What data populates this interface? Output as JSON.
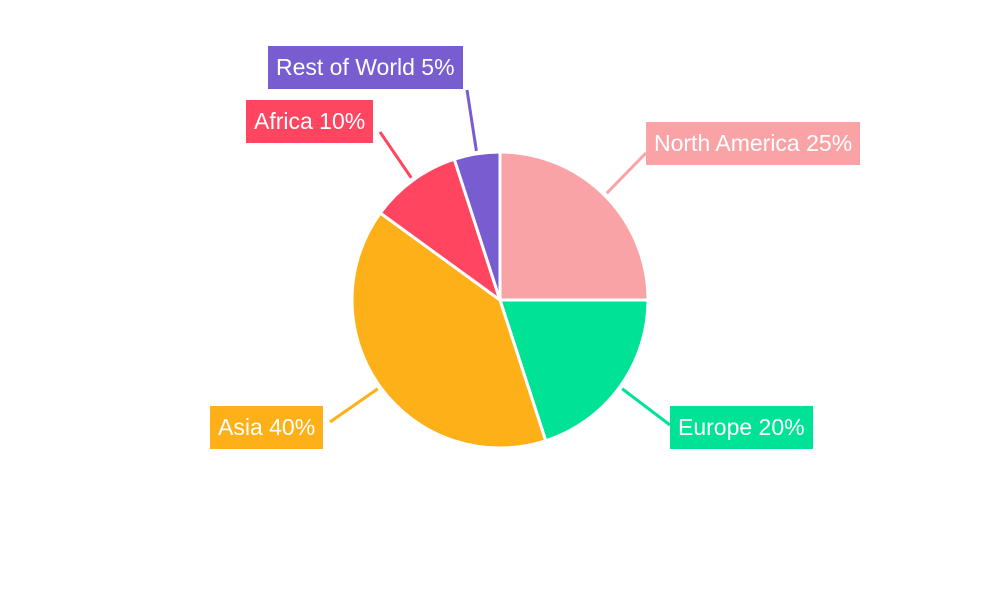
{
  "chart_data": {
    "type": "pie",
    "title": "",
    "slices": [
      {
        "label": "North America",
        "value": 25,
        "display": "North America 25%",
        "color": "#F9A3A6"
      },
      {
        "label": "Europe",
        "value": 20,
        "display": "Europe 20%",
        "color": "#00E396"
      },
      {
        "label": "Asia",
        "value": 40,
        "display": "Asia 40%",
        "color": "#FEB019"
      },
      {
        "label": "Africa",
        "value": 10,
        "display": "Africa 10%",
        "color": "#FF4560"
      },
      {
        "label": "Rest of World",
        "value": 5,
        "display": "Rest of World 5%",
        "color": "#775DD0"
      }
    ],
    "start_angle": "top",
    "direction": "clockwise",
    "legend": "none"
  }
}
